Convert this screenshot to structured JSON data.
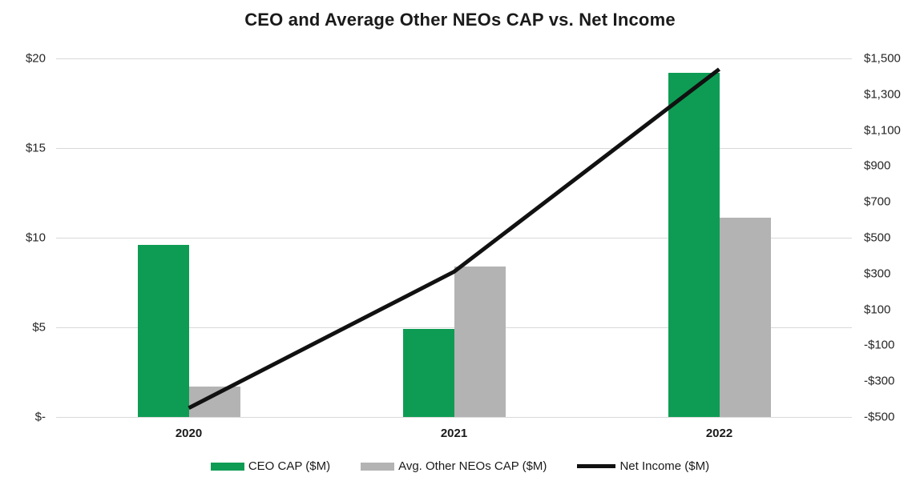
{
  "title": "CEO and Average Other NEOs CAP vs. Net Income",
  "colors": {
    "ceo_bar": "#0e9c54",
    "neo_bar": "#b3b3b3",
    "net_income_line": "#111111",
    "gridline": "#d9d9d9",
    "title_text": "#1a1a1a",
    "tick_text": "#262626"
  },
  "chart_data": {
    "type": "combo-bar-line",
    "categories": [
      "2020",
      "2021",
      "2022"
    ],
    "series": [
      {
        "name": "CEO CAP ($M)",
        "type": "bar",
        "axis": "left",
        "color": "#0e9c54",
        "values": [
          9.6,
          4.9,
          19.2
        ]
      },
      {
        "name": "Avg. Other NEOs CAP ($M)",
        "type": "bar",
        "axis": "left",
        "color": "#b3b3b3",
        "values": [
          1.7,
          8.4,
          11.1
        ]
      },
      {
        "name": "Net Income ($M)",
        "type": "line",
        "axis": "right",
        "color": "#111111",
        "values": [
          -450,
          310,
          1440
        ]
      }
    ],
    "left_axis": {
      "min": 0,
      "max": 20,
      "step": 5,
      "tick_labels": [
        "$-",
        "$5",
        "$10",
        "$15",
        "$20"
      ]
    },
    "right_axis": {
      "min": -500,
      "max": 1500,
      "step": 200,
      "tick_labels": [
        "-$500",
        "-$300",
        "-$100",
        "$100",
        "$300",
        "$500",
        "$700",
        "$900",
        "$1,100",
        "$1,300",
        "$1,500"
      ]
    },
    "grid": true,
    "legend_position": "bottom",
    "title": "CEO and Average Other NEOs CAP vs. Net Income",
    "xlabel": "",
    "ylabel_left": "",
    "ylabel_right": ""
  },
  "legend": {
    "items": [
      {
        "label": "CEO CAP ($M)",
        "swatch": "bar",
        "color": "#0e9c54"
      },
      {
        "label": "Avg. Other NEOs CAP ($M)",
        "swatch": "bar",
        "color": "#b3b3b3"
      },
      {
        "label": "Net Income ($M)",
        "swatch": "line",
        "color": "#111111"
      }
    ]
  }
}
